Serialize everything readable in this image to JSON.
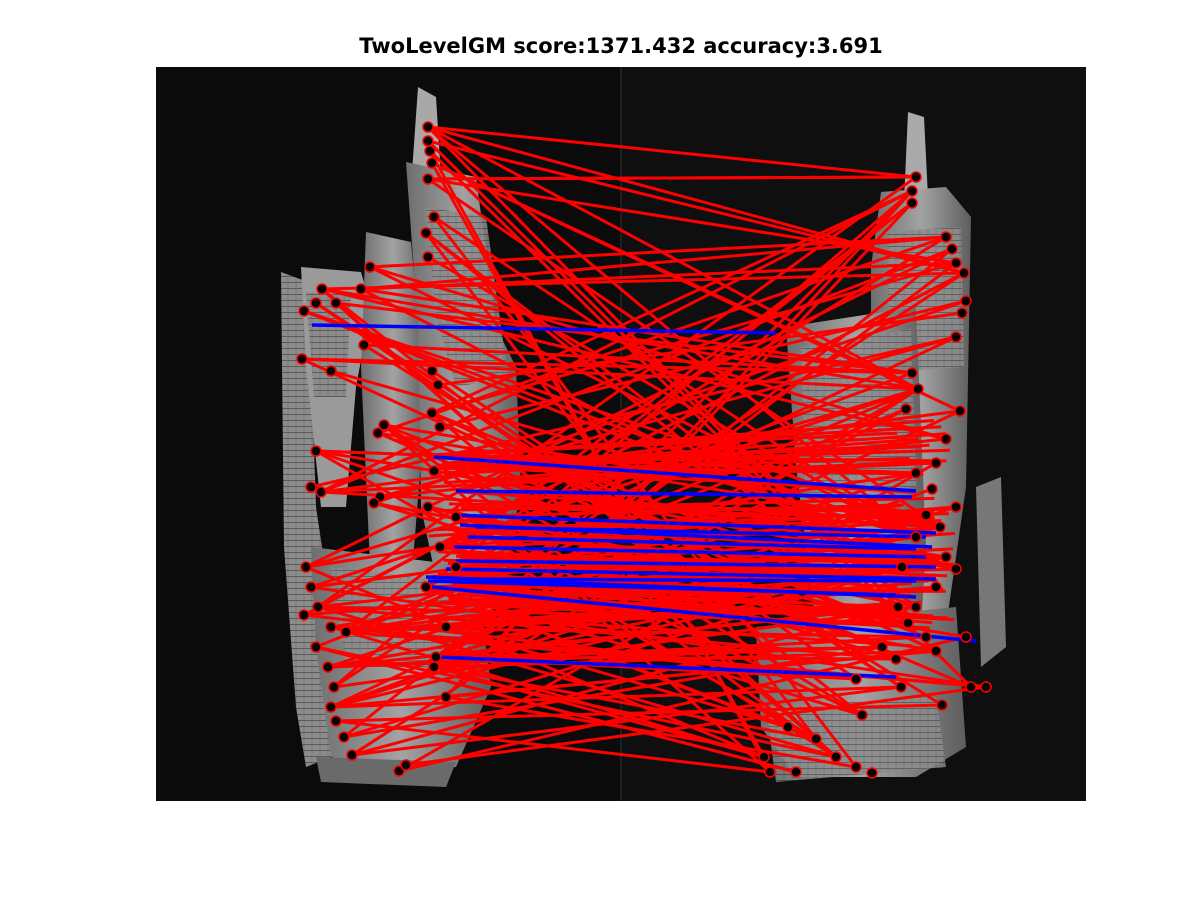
{
  "figure": {
    "title": "TwoLevelGM score:1371.432 accuracy:3.691"
  },
  "colors": {
    "figure_background": "#ffffff",
    "image_background": "#0b0b0b",
    "building_gray": "#8a8a8a",
    "incorrect_match": "#ff0000",
    "correct_match": "#0000ff",
    "keypoint": "#000000"
  },
  "legend_semantics": {
    "red": "incorrect-match",
    "blue": "correct-match"
  },
  "icons": [
    "keypoint-marker-icon"
  ]
}
